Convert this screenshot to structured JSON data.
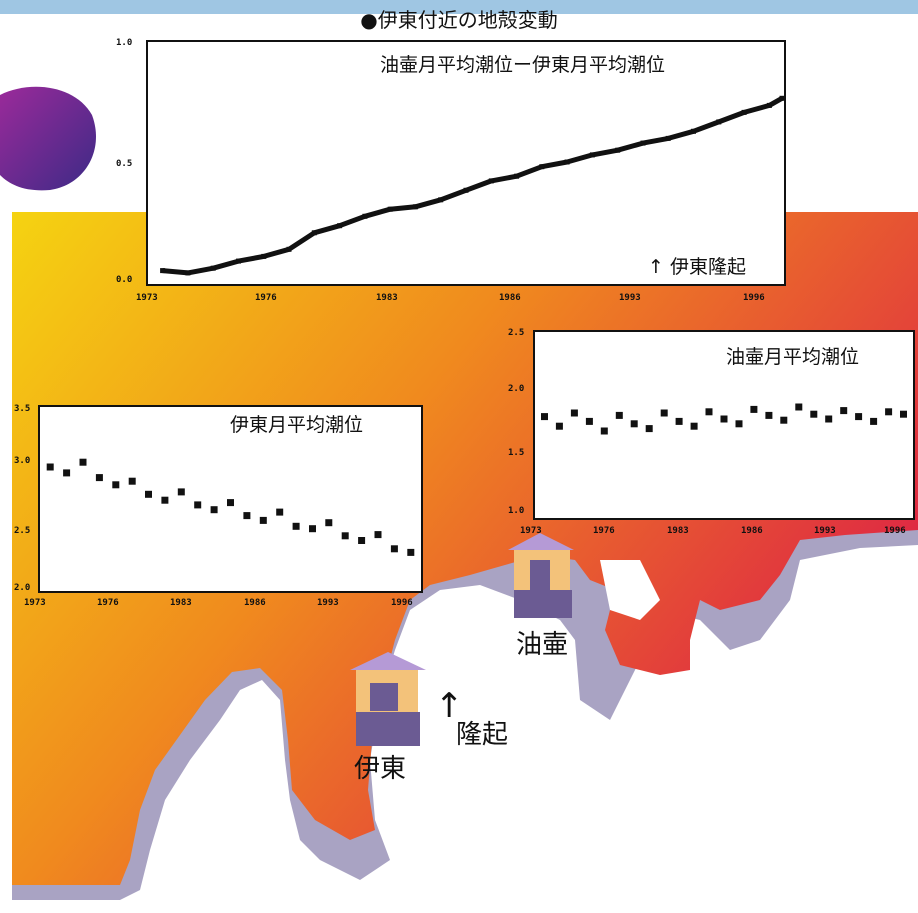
{
  "page_title": "●伊東付近の地殻変動",
  "map": {
    "label_ito": "伊東",
    "label_aburatsubo": "油壷",
    "uplift_arrow": "↑",
    "uplift_label": "隆起",
    "colors": {
      "gradient_start": "#f5d311",
      "gradient_mid": "#f08a1e",
      "gradient_end": "#dd1f47",
      "land_shadow": "#a9a3c3",
      "sea": "#ffffff",
      "house_wall": "#f3c27a",
      "house_base": "#6b5b93",
      "house_roof": "#b59ad6"
    }
  },
  "chart_data": [
    {
      "type": "line",
      "label": "油壷月平均潮位ー伊東月平均潮位",
      "annotation": "↑ 伊東隆起",
      "x_tick_labels": [
        "1973",
        "1976",
        "1983",
        "1986",
        "1993",
        "1996"
      ],
      "y_tick_labels": [
        "1.0",
        "0.5",
        "0.0"
      ],
      "xlim": [
        1973,
        1998
      ],
      "ylim": [
        0.0,
        1.0
      ],
      "x": [
        1973.5,
        1974.5,
        1975.5,
        1976.5,
        1977.5,
        1978.5,
        1979.5,
        1980.5,
        1981.5,
        1982.5,
        1983.5,
        1984.5,
        1985.5,
        1986.5,
        1987.5,
        1988.5,
        1989.5,
        1990.5,
        1991.5,
        1992.5,
        1993.5,
        1994.5,
        1995.5,
        1996.5,
        1997.5,
        1998.0
      ],
      "y": [
        0.04,
        0.03,
        0.05,
        0.08,
        0.1,
        0.13,
        0.2,
        0.23,
        0.27,
        0.3,
        0.31,
        0.34,
        0.38,
        0.42,
        0.44,
        0.48,
        0.5,
        0.53,
        0.55,
        0.58,
        0.6,
        0.63,
        0.67,
        0.71,
        0.74,
        0.77
      ]
    },
    {
      "type": "scatter",
      "label": "伊東月平均潮位",
      "x_tick_labels": [
        "1973",
        "1976",
        "1983",
        "1986",
        "1993",
        "1996"
      ],
      "y_tick_labels": [
        "3.5",
        "3.0",
        "2.5",
        "2.0"
      ],
      "xlim": [
        1973,
        1996
      ],
      "ylim": [
        2.0,
        3.5
      ],
      "x": [
        1973.5,
        1974.5,
        1975.5,
        1976.5,
        1977.5,
        1978.5,
        1979.5,
        1980.5,
        1981.5,
        1982.5,
        1983.5,
        1984.5,
        1985.5,
        1986.5,
        1987.5,
        1988.5,
        1989.5,
        1990.5,
        1991.5,
        1992.5,
        1993.5,
        1994.5,
        1995.5
      ],
      "y": [
        3.02,
        2.97,
        3.06,
        2.93,
        2.87,
        2.9,
        2.79,
        2.74,
        2.81,
        2.7,
        2.66,
        2.72,
        2.61,
        2.57,
        2.64,
        2.52,
        2.5,
        2.55,
        2.44,
        2.4,
        2.45,
        2.33,
        2.3
      ]
    },
    {
      "type": "scatter",
      "label": "油壷月平均潮位",
      "x_tick_labels": [
        "1973",
        "1976",
        "1983",
        "1986",
        "1993",
        "1996"
      ],
      "y_tick_labels": [
        "2.5",
        "2.0",
        "1.5",
        "1.0"
      ],
      "xlim": [
        1973,
        1998
      ],
      "ylim": [
        1.0,
        2.5
      ],
      "x": [
        1973.5,
        1974.5,
        1975.5,
        1976.5,
        1977.5,
        1978.5,
        1979.5,
        1980.5,
        1981.5,
        1982.5,
        1983.5,
        1984.5,
        1985.5,
        1986.5,
        1987.5,
        1988.5,
        1989.5,
        1990.5,
        1991.5,
        1992.5,
        1993.5,
        1994.5,
        1995.5,
        1996.5,
        1997.5
      ],
      "y": [
        1.82,
        1.74,
        1.85,
        1.78,
        1.7,
        1.83,
        1.76,
        1.72,
        1.85,
        1.78,
        1.74,
        1.86,
        1.8,
        1.76,
        1.88,
        1.83,
        1.79,
        1.9,
        1.84,
        1.8,
        1.87,
        1.82,
        1.78,
        1.86,
        1.84
      ]
    }
  ]
}
